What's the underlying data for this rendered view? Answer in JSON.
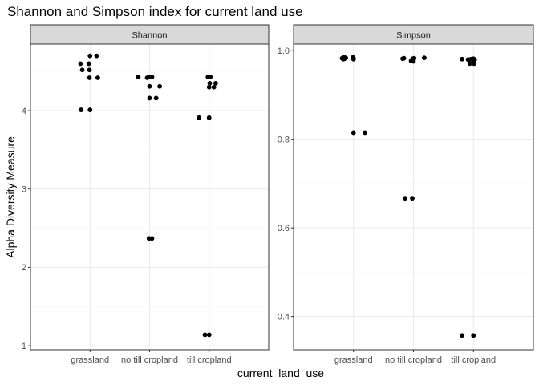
{
  "title": "Shannon and Simpson index for current land use",
  "xlabel": "current_land_use",
  "ylabel": "Alpha Diversity Measure",
  "colors": {
    "strip_bg": "#d9d9d9",
    "strip_border": "#333333",
    "panel_border": "#333333",
    "grid_major": "#ebebeb",
    "grid_minor": "#f5f5f5",
    "point": "#000000",
    "axis_text": "#4d4d4d"
  },
  "chart_data": [
    {
      "type": "scatter",
      "facet": "Shannon",
      "categories": [
        "grassland",
        "no till cropland",
        "till cropland"
      ],
      "ylim": [
        0.95,
        4.85
      ],
      "yticks": [
        1,
        2,
        3,
        4
      ],
      "grid": true,
      "points": [
        {
          "x": "grassland",
          "jitter": -0.16,
          "y": 4.6
        },
        {
          "x": "grassland",
          "jitter": -0.13,
          "y": 4.52
        },
        {
          "x": "grassland",
          "jitter": 0.0,
          "y": 4.7
        },
        {
          "x": "grassland",
          "jitter": 0.11,
          "y": 4.7
        },
        {
          "x": "grassland",
          "jitter": -0.02,
          "y": 4.6
        },
        {
          "x": "grassland",
          "jitter": -0.01,
          "y": 4.52
        },
        {
          "x": "grassland",
          "jitter": -0.01,
          "y": 4.42
        },
        {
          "x": "grassland",
          "jitter": 0.13,
          "y": 4.42
        },
        {
          "x": "grassland",
          "jitter": -0.15,
          "y": 4.01
        },
        {
          "x": "grassland",
          "jitter": 0.0,
          "y": 4.01
        },
        {
          "x": "no till cropland",
          "jitter": -0.19,
          "y": 4.43
        },
        {
          "x": "no till cropland",
          "jitter": -0.04,
          "y": 4.42
        },
        {
          "x": "no till cropland",
          "jitter": 0.0,
          "y": 4.43
        },
        {
          "x": "no till cropland",
          "jitter": 0.04,
          "y": 4.43
        },
        {
          "x": "no till cropland",
          "jitter": 0.0,
          "y": 4.31
        },
        {
          "x": "no till cropland",
          "jitter": 0.17,
          "y": 4.31
        },
        {
          "x": "no till cropland",
          "jitter": 0.0,
          "y": 4.16
        },
        {
          "x": "no till cropland",
          "jitter": 0.11,
          "y": 4.16
        },
        {
          "x": "no till cropland",
          "jitter": -0.01,
          "y": 2.37
        },
        {
          "x": "no till cropland",
          "jitter": 0.04,
          "y": 2.37
        },
        {
          "x": "till cropland",
          "jitter": -0.02,
          "y": 4.43
        },
        {
          "x": "till cropland",
          "jitter": 0.02,
          "y": 4.43
        },
        {
          "x": "till cropland",
          "jitter": 0.01,
          "y": 4.35
        },
        {
          "x": "till cropland",
          "jitter": 0.11,
          "y": 4.35
        },
        {
          "x": "till cropland",
          "jitter": 0.0,
          "y": 4.3
        },
        {
          "x": "till cropland",
          "jitter": 0.08,
          "y": 4.3
        },
        {
          "x": "till cropland",
          "jitter": -0.17,
          "y": 3.91
        },
        {
          "x": "till cropland",
          "jitter": 0.0,
          "y": 3.91
        },
        {
          "x": "till cropland",
          "jitter": -0.07,
          "y": 1.14
        },
        {
          "x": "till cropland",
          "jitter": 0.0,
          "y": 1.14
        }
      ]
    },
    {
      "type": "scatter",
      "facet": "Simpson",
      "categories": [
        "grassland",
        "no till cropland",
        "till cropland"
      ],
      "ylim": [
        0.325,
        1.015
      ],
      "yticks": [
        0.4,
        0.6,
        0.8,
        1.0
      ],
      "ytick_labels": [
        "0.4",
        "0.6",
        "0.8",
        "1.0"
      ],
      "grid": true,
      "points": [
        {
          "x": "grassland",
          "jitter": -0.19,
          "y": 0.983
        },
        {
          "x": "grassland",
          "jitter": -0.16,
          "y": 0.985
        },
        {
          "x": "grassland",
          "jitter": -0.13,
          "y": 0.984
        },
        {
          "x": "grassland",
          "jitter": 0.0,
          "y": 0.983
        },
        {
          "x": "grassland",
          "jitter": 0.0,
          "y": 0.981
        },
        {
          "x": "grassland",
          "jitter": -0.15,
          "y": 0.982
        },
        {
          "x": "grassland",
          "jitter": -0.17,
          "y": 0.981
        },
        {
          "x": "grassland",
          "jitter": -0.01,
          "y": 0.985
        },
        {
          "x": "grassland",
          "jitter": 0.0,
          "y": 0.815
        },
        {
          "x": "grassland",
          "jitter": 0.19,
          "y": 0.815
        },
        {
          "x": "no till cropland",
          "jitter": -0.18,
          "y": 0.982
        },
        {
          "x": "no till cropland",
          "jitter": -0.16,
          "y": 0.983
        },
        {
          "x": "no till cropland",
          "jitter": -0.04,
          "y": 0.977
        },
        {
          "x": "no till cropland",
          "jitter": -0.01,
          "y": 0.982
        },
        {
          "x": "no till cropland",
          "jitter": 0.0,
          "y": 0.976
        },
        {
          "x": "no till cropland",
          "jitter": 0.01,
          "y": 0.983
        },
        {
          "x": "no till cropland",
          "jitter": 0.18,
          "y": 0.984
        },
        {
          "x": "no till cropland",
          "jitter": -0.03,
          "y": 0.979
        },
        {
          "x": "no till cropland",
          "jitter": -0.14,
          "y": 0.667
        },
        {
          "x": "no till cropland",
          "jitter": -0.02,
          "y": 0.667
        },
        {
          "x": "till cropland",
          "jitter": -0.19,
          "y": 0.981
        },
        {
          "x": "till cropland",
          "jitter": -0.09,
          "y": 0.98
        },
        {
          "x": "till cropland",
          "jitter": -0.06,
          "y": 0.971
        },
        {
          "x": "till cropland",
          "jitter": -0.04,
          "y": 0.981
        },
        {
          "x": "till cropland",
          "jitter": 0.0,
          "y": 0.982
        },
        {
          "x": "till cropland",
          "jitter": 0.01,
          "y": 0.971
        },
        {
          "x": "till cropland",
          "jitter": 0.02,
          "y": 0.98
        },
        {
          "x": "till cropland",
          "jitter": 0.0,
          "y": 0.976
        },
        {
          "x": "till cropland",
          "jitter": -0.19,
          "y": 0.357
        },
        {
          "x": "till cropland",
          "jitter": 0.0,
          "y": 0.357
        }
      ]
    }
  ]
}
